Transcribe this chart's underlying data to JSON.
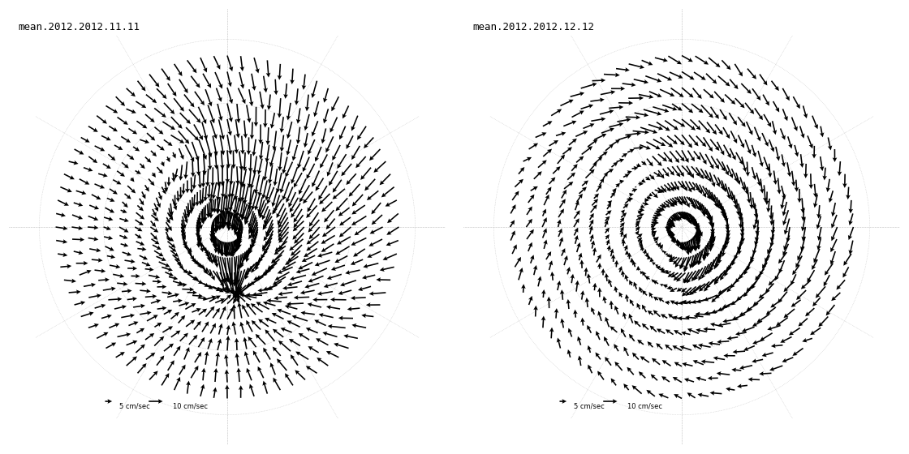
{
  "title_left": "mean.2012.2012.11.11",
  "title_right": "mean.2012.2012.12.12",
  "legend_label_5": "5 cm/sec",
  "legend_label_10": "10 cm/sec",
  "background_color": "#ffffff",
  "land_color": "#ffffff",
  "ocean_color": "#ffffff",
  "coastline_color": "#000000",
  "arrow_color": "#000000",
  "grid_color": "#aaaaaa",
  "title_fontsize": 9,
  "legend_fontsize": 6,
  "central_longitude": 0,
  "lat_min": 57,
  "lat_true_scale": 70
}
